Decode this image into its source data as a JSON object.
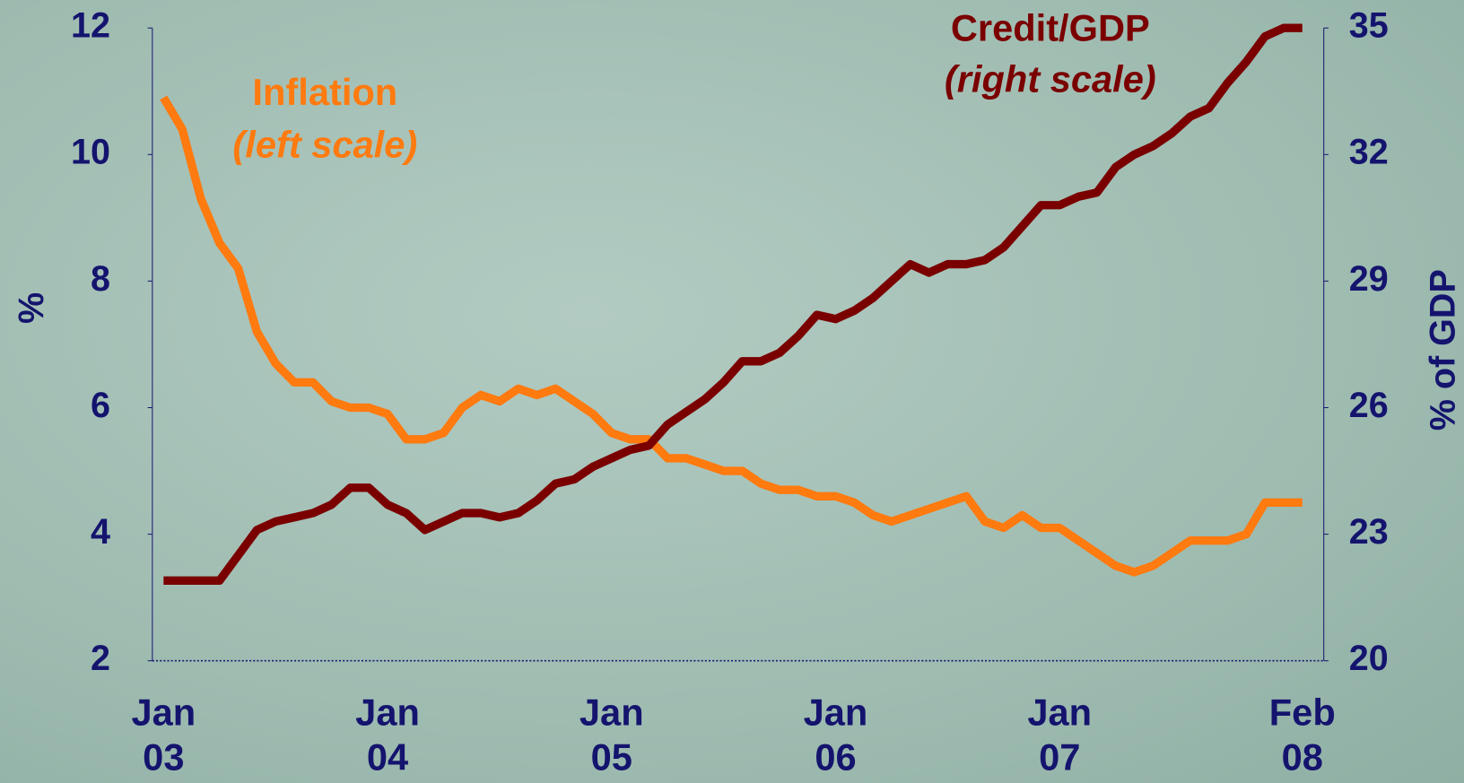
{
  "chart_data": {
    "type": "line",
    "categories": [
      "Jan 03",
      null,
      null,
      null,
      null,
      null,
      null,
      null,
      null,
      null,
      null,
      null,
      "Jan 04",
      null,
      null,
      null,
      null,
      null,
      null,
      null,
      null,
      null,
      null,
      null,
      "Jan 05",
      null,
      null,
      null,
      null,
      null,
      null,
      null,
      null,
      null,
      null,
      null,
      "Jan 06",
      null,
      null,
      null,
      null,
      null,
      null,
      null,
      null,
      null,
      null,
      null,
      "Jan 07",
      null,
      null,
      null,
      null,
      null,
      null,
      null,
      null,
      null,
      null,
      null,
      null,
      "Feb 08"
    ],
    "series": [
      {
        "name": "Inflation",
        "color": "#ff7a0f",
        "axis": "y",
        "values": [
          10.9,
          10.4,
          9.3,
          8.6,
          8.2,
          7.2,
          6.7,
          6.4,
          6.4,
          6.1,
          6.0,
          6.0,
          5.9,
          5.5,
          5.5,
          5.6,
          6.0,
          6.2,
          6.1,
          6.3,
          6.2,
          6.3,
          6.1,
          5.9,
          5.6,
          5.5,
          5.5,
          5.2,
          5.2,
          5.1,
          5.0,
          5.0,
          4.8,
          4.7,
          4.7,
          4.6,
          4.6,
          4.5,
          4.3,
          4.2,
          4.3,
          4.4,
          4.5,
          4.6,
          4.2,
          4.1,
          4.3,
          4.1,
          4.1,
          3.9,
          3.7,
          3.5,
          3.4,
          3.5,
          3.7,
          3.9,
          3.9,
          3.9,
          4.0,
          4.5,
          4.5,
          4.5
        ]
      },
      {
        "name": "Credit/GDP",
        "color": "#7a0000",
        "axis": "y2",
        "values": [
          21.9,
          21.9,
          21.9,
          21.9,
          22.5,
          23.1,
          23.3,
          23.4,
          23.5,
          23.7,
          24.1,
          24.1,
          23.7,
          23.5,
          23.1,
          23.3,
          23.5,
          23.5,
          23.4,
          23.5,
          23.8,
          24.2,
          24.3,
          24.6,
          24.8,
          25.0,
          25.1,
          25.6,
          25.9,
          26.2,
          26.6,
          27.1,
          27.1,
          27.3,
          27.7,
          28.2,
          28.1,
          28.3,
          28.6,
          29.0,
          29.4,
          29.2,
          29.4,
          29.4,
          29.5,
          29.8,
          30.3,
          30.8,
          30.8,
          31.0,
          31.1,
          31.7,
          32.0,
          32.2,
          32.5,
          32.9,
          33.1,
          33.7,
          34.2,
          34.8,
          35.0,
          35.0
        ]
      }
    ],
    "annotations": [
      "(left scale)",
      "(right scale)"
    ],
    "ylabel": "%",
    "y2label": "% of GDP",
    "ylim": [
      2,
      12
    ],
    "yticks": [
      2,
      4,
      6,
      8,
      10,
      12
    ],
    "y2lim": [
      20,
      35
    ],
    "y2ticks": [
      20,
      23,
      26,
      29,
      32,
      35
    ],
    "grid": false
  }
}
